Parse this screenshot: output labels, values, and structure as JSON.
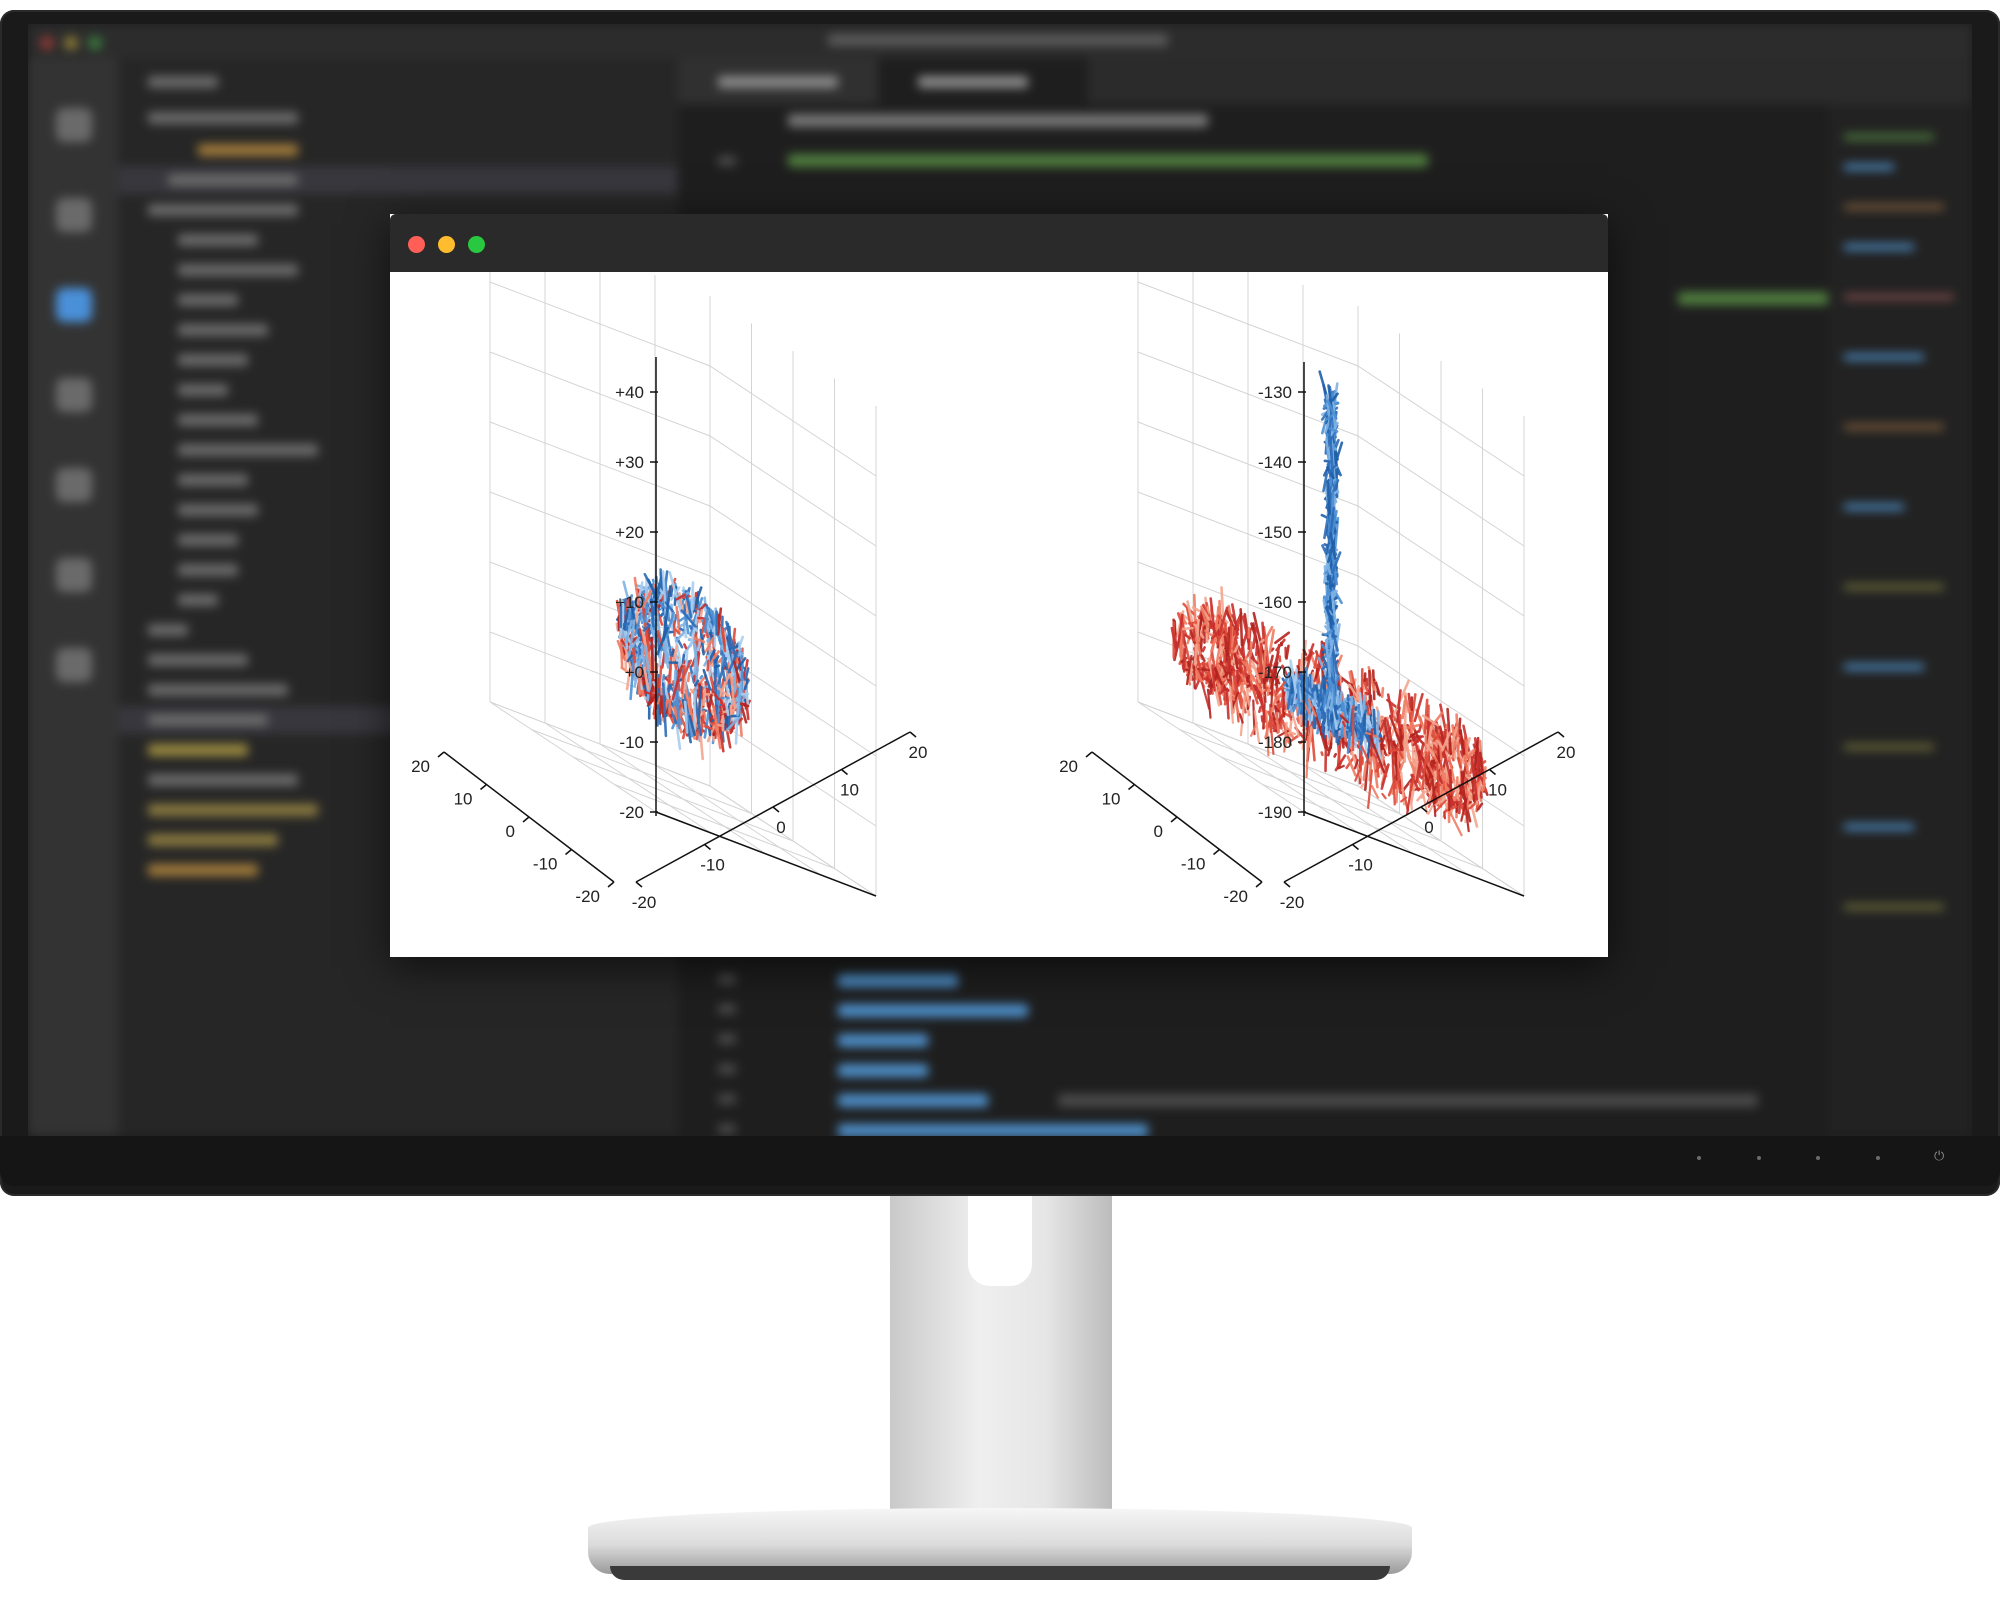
{
  "colors": {
    "window_close": "#ff5f57",
    "window_minimize": "#febc2e",
    "window_zoom": "#28c840",
    "blue": "#2f6db8",
    "red": "#c9302c",
    "grid": "#d4d4d4"
  },
  "icons": [
    "close-icon",
    "minimize-icon",
    "zoom-icon",
    "power-icon"
  ],
  "chart_data": [
    {
      "type": "scatter",
      "subtype": "3d-quiver",
      "title": "",
      "xlabel": "",
      "ylabel": "",
      "zlabel": "",
      "xticks": [
        "20",
        "10",
        "0",
        "-10",
        "-20"
      ],
      "yticks": [
        "20",
        "10",
        "0",
        "-10",
        "-20"
      ],
      "zticks": [
        "+40",
        "+30",
        "+20",
        "+10",
        "+0",
        "-10",
        "-20"
      ],
      "xlim": [
        -20,
        20
      ],
      "ylim": [
        -20,
        20
      ],
      "zlim": [
        -20,
        40
      ],
      "grid": true,
      "shape": "sphere of short segments centred at origin, radius about 10",
      "series_colors": [
        "#2f6db8",
        "#c9302c"
      ]
    },
    {
      "type": "scatter",
      "subtype": "3d-quiver",
      "title": "",
      "xlabel": "",
      "ylabel": "",
      "zlabel": "",
      "xticks": [
        "20",
        "10",
        "0",
        "-10",
        "-20"
      ],
      "yticks": [
        "20",
        "10",
        "0",
        "-10",
        "-20"
      ],
      "zticks": [
        "-130",
        "-140",
        "-150",
        "-160",
        "-170",
        "-180",
        "-190"
      ],
      "xlim": [
        -20,
        20
      ],
      "ylim": [
        -20,
        20
      ],
      "zlim": [
        -195,
        -125
      ],
      "grid": true,
      "shape": "red torus of radius about 20 around a blue vertical column rising from about -180 to -130",
      "series_colors": [
        "#2f6db8",
        "#c9302c"
      ]
    }
  ]
}
